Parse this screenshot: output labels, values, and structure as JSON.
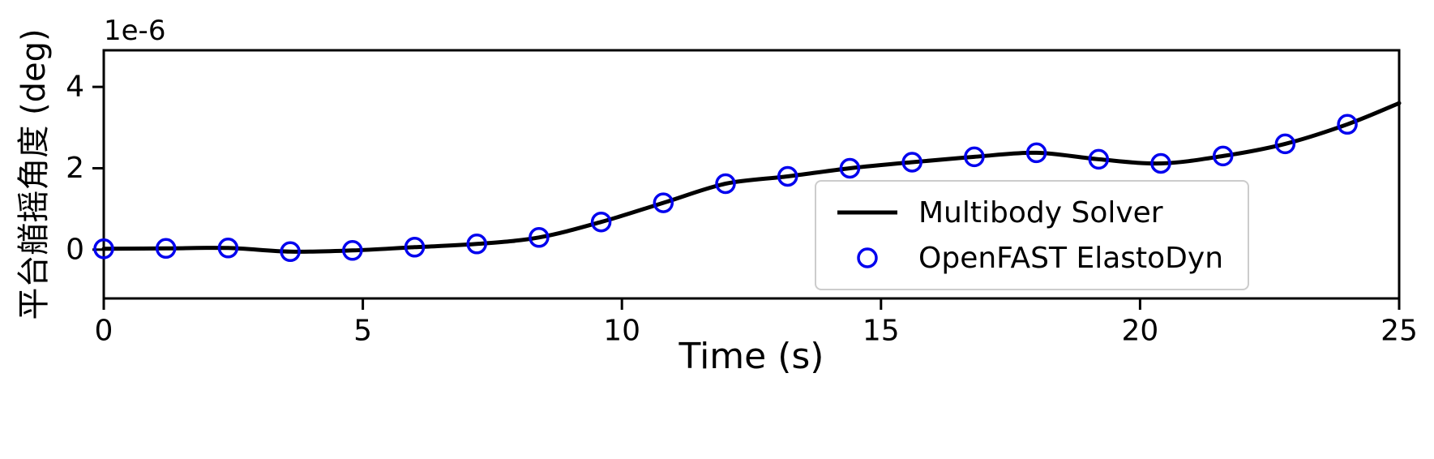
{
  "figure": {
    "background": "#ffffff",
    "text_color": "#000000",
    "spine_color": "#000000"
  },
  "chart_data": {
    "type": "line",
    "title": "",
    "xlabel": "Time (s)",
    "ylabel": "平台艏摇角度 (deg)",
    "y_scale_offset_text": "1e-6",
    "xlim": [
      0,
      25
    ],
    "ylim": [
      -1.2,
      4.9
    ],
    "xticks": [
      0,
      5,
      10,
      15,
      20,
      25
    ],
    "yticks": [
      0,
      2,
      4
    ],
    "grid": false,
    "legend_position": "center-right",
    "series": [
      {
        "name": "Multibody Solver",
        "type": "line",
        "color": "#000000",
        "line_width": 5,
        "x": [
          0,
          1.2,
          2.4,
          3.6,
          4.8,
          6.0,
          7.2,
          8.4,
          9.6,
          10.8,
          12.0,
          13.2,
          14.4,
          15.6,
          16.8,
          18.0,
          19.2,
          20.4,
          21.6,
          22.8,
          24.0,
          25.0
        ],
        "y": [
          0.02,
          0.03,
          0.04,
          -0.05,
          -0.02,
          0.06,
          0.14,
          0.3,
          0.68,
          1.15,
          1.62,
          1.8,
          2.0,
          2.15,
          2.28,
          2.38,
          2.22,
          2.12,
          2.3,
          2.6,
          3.08,
          3.6
        ]
      },
      {
        "name": "OpenFAST ElastoDyn",
        "type": "scatter",
        "marker": "open-circle",
        "color": "#0000ee",
        "marker_size": 11,
        "x": [
          0,
          1.2,
          2.4,
          3.6,
          4.8,
          6.0,
          7.2,
          8.4,
          9.6,
          10.8,
          12.0,
          13.2,
          14.4,
          15.6,
          16.8,
          18.0,
          19.2,
          20.4,
          21.6,
          22.8,
          24.0
        ],
        "y": [
          0.02,
          0.03,
          0.04,
          -0.05,
          -0.02,
          0.06,
          0.14,
          0.3,
          0.68,
          1.15,
          1.62,
          1.8,
          2.0,
          2.15,
          2.28,
          2.38,
          2.22,
          2.12,
          2.3,
          2.6,
          3.08
        ]
      }
    ]
  }
}
